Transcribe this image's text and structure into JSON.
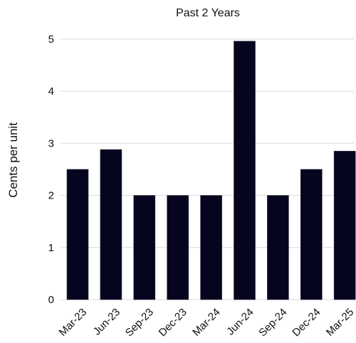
{
  "chart_data": {
    "type": "bar",
    "title": "Past 2 Years",
    "xlabel": "",
    "ylabel": "Cents per unit",
    "categories": [
      "Mar-23",
      "Jun-23",
      "Sep-23",
      "Dec-23",
      "Mar-24",
      "Jun-24",
      "Sep-24",
      "Dec-24",
      "Mar-25"
    ],
    "series": [
      {
        "values": [
          2.5,
          2.88,
          2.0,
          2.0,
          2.0,
          4.96,
          2.0,
          2.5,
          2.85
        ],
        "color": "#05051f"
      }
    ],
    "ylim": [
      0,
      5
    ],
    "yticks": [
      0,
      1,
      2,
      3,
      4,
      5
    ],
    "grid": true,
    "legend": "none"
  }
}
